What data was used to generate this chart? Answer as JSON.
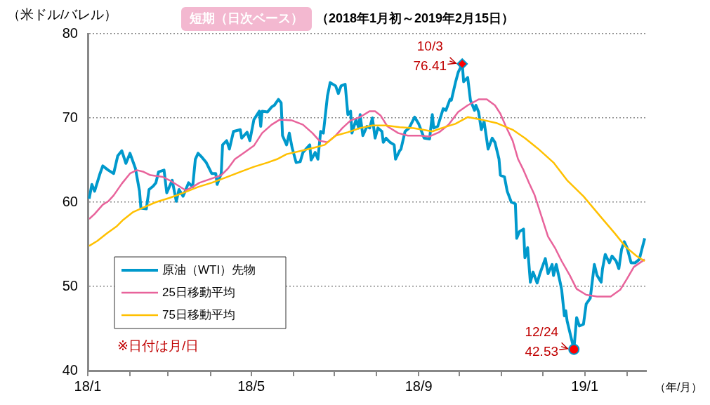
{
  "chart_data": {
    "type": "line",
    "title": "短期（日次ベース）",
    "subtitle": "（2018年1月初～2019年2月15日）",
    "ylabel": "（米ドル/バレル）",
    "xlabel": "（年/月）",
    "xlim": [
      "2018-01-01",
      "2019-02-15"
    ],
    "xticks": [
      {
        "value": "2018-01",
        "label": "18/1"
      },
      {
        "value": "2018-02",
        "label": null
      },
      {
        "value": "2018-03",
        "label": null
      },
      {
        "value": "2018-04",
        "label": null
      },
      {
        "value": "2018-05",
        "label": "18/5"
      },
      {
        "value": "2018-06",
        "label": null
      },
      {
        "value": "2018-07",
        "label": null
      },
      {
        "value": "2018-08",
        "label": null
      },
      {
        "value": "2018-09",
        "label": "18/9"
      },
      {
        "value": "2018-10",
        "label": null
      },
      {
        "value": "2018-11",
        "label": null
      },
      {
        "value": "2018-12",
        "label": null
      },
      {
        "value": "2019-01",
        "label": "19/1"
      },
      {
        "value": "2019-02",
        "label": null
      }
    ],
    "ylim": [
      40,
      80
    ],
    "yticks": [
      40,
      50,
      60,
      70,
      80
    ],
    "grid": "y",
    "legend": "bottom left",
    "annotations": [
      {
        "text": "10/3\n76.41",
        "x": "2018-10-03",
        "y": 76.41
      },
      {
        "text": "12/24\n42.53",
        "x": "2018-12-24",
        "y": 42.53
      },
      "※日付は月/日"
    ],
    "series": [
      {
        "name": "原油（WTI）先物",
        "color": "#0099cc",
        "x": [
          "2018-01-02",
          "2018-01-04",
          "2018-01-06",
          "2018-01-10",
          "2018-01-12",
          "2018-01-16",
          "2018-01-20",
          "2018-01-23",
          "2018-01-26",
          "2018-01-29",
          "2018-02-01",
          "2018-02-05",
          "2018-02-08",
          "2018-02-09",
          "2018-02-13",
          "2018-02-15",
          "2018-02-18",
          "2018-02-20",
          "2018-02-22",
          "2018-02-26",
          "2018-02-28",
          "2018-03-04",
          "2018-03-07",
          "2018-03-09",
          "2018-03-12",
          "2018-03-16",
          "2018-03-19",
          "2018-03-21",
          "2018-03-23",
          "2018-03-26",
          "2018-03-29",
          "2018-04-02",
          "2018-04-05",
          "2018-04-06",
          "2018-04-09",
          "2018-04-10",
          "2018-04-13",
          "2018-04-15",
          "2018-04-18",
          "2018-04-23",
          "2018-04-24",
          "2018-04-28",
          "2018-04-30",
          "2018-05-03",
          "2018-05-07",
          "2018-05-08",
          "2018-05-09",
          "2018-05-13",
          "2018-05-16",
          "2018-05-18",
          "2018-05-21",
          "2018-05-23",
          "2018-05-24",
          "2018-05-27",
          "2018-05-29",
          "2018-05-31",
          "2018-06-03",
          "2018-06-06",
          "2018-06-08",
          "2018-06-13",
          "2018-06-14",
          "2018-06-17",
          "2018-06-19",
          "2018-06-21",
          "2018-06-23",
          "2018-06-26",
          "2018-06-28",
          "2018-07-02",
          "2018-07-04",
          "2018-07-06",
          "2018-07-09",
          "2018-07-11",
          "2018-07-13",
          "2018-07-14",
          "2018-07-17",
          "2018-07-19",
          "2018-07-20",
          "2018-07-22",
          "2018-07-25",
          "2018-07-27",
          "2018-07-29",
          "2018-07-31",
          "2018-08-02",
          "2018-08-05",
          "2018-08-06",
          "2018-08-08",
          "2018-08-11",
          "2018-08-14",
          "2018-08-15",
          "2018-08-18",
          "2018-08-19",
          "2018-08-22",
          "2018-08-25",
          "2018-08-29",
          "2018-09-01",
          "2018-09-05",
          "2018-09-09",
          "2018-09-11",
          "2018-09-12",
          "2018-09-15",
          "2018-09-19",
          "2018-09-21",
          "2018-09-24",
          "2018-09-25",
          "2018-09-28",
          "2018-09-30",
          "2018-10-03",
          "2018-10-04",
          "2018-10-07",
          "2018-10-09",
          "2018-10-12",
          "2018-10-13",
          "2018-10-15",
          "2018-10-17",
          "2018-10-19",
          "2018-10-22",
          "2018-10-25",
          "2018-10-27",
          "2018-10-30",
          "2018-10-31",
          "2018-11-03",
          "2018-11-05",
          "2018-11-08",
          "2018-11-11",
          "2018-11-12",
          "2018-11-14",
          "2018-11-17",
          "2018-11-18",
          "2018-11-20",
          "2018-11-22",
          "2018-11-24",
          "2018-11-27",
          "2018-11-29",
          "2018-12-03",
          "2018-12-05",
          "2018-12-08",
          "2018-12-09",
          "2018-12-11",
          "2018-12-14",
          "2018-12-15",
          "2018-12-17",
          "2018-12-18",
          "2018-12-19",
          "2018-12-24",
          "2018-12-26",
          "2018-12-28",
          "2018-12-31",
          "2019-01-02",
          "2019-01-05",
          "2019-01-08",
          "2019-01-10",
          "2019-01-13",
          "2019-01-14",
          "2019-01-16",
          "2019-01-19",
          "2019-01-21",
          "2019-01-24",
          "2019-01-26",
          "2019-01-28",
          "2019-01-30",
          "2019-02-01",
          "2019-02-04",
          "2019-02-07",
          "2019-02-10",
          "2019-02-14"
        ],
        "values": [
          60.4,
          62.1,
          61.3,
          63.4,
          64.3,
          63.8,
          63.4,
          65.5,
          66.1,
          64.6,
          65.8,
          64.0,
          61.3,
          59.3,
          59.2,
          61.5,
          61.9,
          62.3,
          63.6,
          63.8,
          61.1,
          62.6,
          60.1,
          61.5,
          60.7,
          62.3,
          61.8,
          65.1,
          65.8,
          65.3,
          64.7,
          63.4,
          63.4,
          62.1,
          63.4,
          66.8,
          67.3,
          66.3,
          68.4,
          68.6,
          67.6,
          68.3,
          67.3,
          69.8,
          70.8,
          69.0,
          70.8,
          70.7,
          71.3,
          71.5,
          72.2,
          71.8,
          67.9,
          66.8,
          68.2,
          66.5,
          64.7,
          64.8,
          65.9,
          66.8,
          65.0,
          65.9,
          65.1,
          68.4,
          68.2,
          72.6,
          74.2,
          73.8,
          72.9,
          73.8,
          74.0,
          70.4,
          70.8,
          68.2,
          69.8,
          68.8,
          70.4,
          67.9,
          69.0,
          68.8,
          70.0,
          67.6,
          68.8,
          68.4,
          67.1,
          67.6,
          67.1,
          66.8,
          65.1,
          66.1,
          66.3,
          68.4,
          68.8,
          70.1,
          69.3,
          67.6,
          67.5,
          70.4,
          68.8,
          69.0,
          71.1,
          70.9,
          72.2,
          72.1,
          74.2,
          75.4,
          76.41,
          74.3,
          74.8,
          72.1,
          70.9,
          71.5,
          70.7,
          68.6,
          69.6,
          66.3,
          67.6,
          67.1,
          65.1,
          63.2,
          63.0,
          61.3,
          60.0,
          59.8,
          55.7,
          56.5,
          56.8,
          53.4,
          54.6,
          50.5,
          51.7,
          50.4,
          51.5,
          53.3,
          51.5,
          52.6,
          51.3,
          52.6,
          50.4,
          49.6,
          46.5,
          47.1,
          45.9,
          42.53,
          46.3,
          45.3,
          45.5,
          47.9,
          48.6,
          52.6,
          51.3,
          50.5,
          52.1,
          53.8,
          52.8,
          53.6,
          53.0,
          52.1,
          54.4,
          55.3,
          54.6,
          52.8,
          52.8,
          53.2,
          55.7
        ]
      },
      {
        "name": "25日移動平均",
        "color": "#e8639b",
        "x": [
          "2018-01-02",
          "2018-01-06",
          "2018-01-12",
          "2018-01-16",
          "2018-01-20",
          "2018-01-26",
          "2018-02-01",
          "2018-02-06",
          "2018-02-11",
          "2018-02-16",
          "2018-02-25",
          "2018-03-02",
          "2018-03-07",
          "2018-03-14",
          "2018-03-19",
          "2018-03-24",
          "2018-04-02",
          "2018-04-09",
          "2018-04-14",
          "2018-04-19",
          "2018-04-26",
          "2018-05-03",
          "2018-05-09",
          "2018-05-16",
          "2018-05-22",
          "2018-05-31",
          "2018-06-08",
          "2018-06-15",
          "2018-06-20",
          "2018-06-26",
          "2018-07-02",
          "2018-07-07",
          "2018-07-13",
          "2018-07-20",
          "2018-07-27",
          "2018-07-31",
          "2018-08-04",
          "2018-08-09",
          "2018-08-17",
          "2018-08-24",
          "2018-09-02",
          "2018-09-09",
          "2018-09-16",
          "2018-09-23",
          "2018-09-30",
          "2018-10-07",
          "2018-10-15",
          "2018-10-21",
          "2018-10-27",
          "2018-10-31",
          "2018-11-04",
          "2018-11-09",
          "2018-11-13",
          "2018-11-17",
          "2018-11-21",
          "2018-11-25",
          "2018-11-30",
          "2018-12-05",
          "2018-12-10",
          "2018-12-15",
          "2018-12-21",
          "2018-12-26",
          "2019-01-02",
          "2019-01-10",
          "2019-01-20",
          "2019-01-27",
          "2019-02-01",
          "2019-02-06",
          "2019-02-14"
        ],
        "values": [
          58.0,
          58.6,
          59.7,
          60.1,
          60.8,
          62.2,
          63.4,
          63.8,
          63.6,
          63.2,
          63.0,
          62.6,
          62.1,
          61.4,
          61.8,
          62.3,
          62.8,
          63.2,
          64.0,
          65.1,
          65.9,
          66.7,
          68.2,
          69.2,
          69.8,
          69.7,
          69.2,
          68.2,
          67.3,
          67.1,
          67.9,
          68.8,
          69.7,
          70.1,
          70.8,
          70.8,
          70.3,
          69.0,
          68.2,
          67.9,
          67.9,
          67.8,
          68.3,
          69.2,
          70.7,
          71.5,
          72.2,
          72.2,
          71.5,
          70.5,
          69.0,
          67.3,
          65.1,
          63.8,
          62.3,
          60.9,
          58.4,
          55.9,
          54.6,
          53.0,
          51.3,
          49.7,
          49.0,
          48.8,
          48.8,
          49.6,
          50.9,
          52.3,
          53.2
        ]
      },
      {
        "name": "75日移動平均",
        "color": "#ffc000",
        "x": [
          "2018-01-02",
          "2018-01-08",
          "2018-01-15",
          "2018-01-22",
          "2018-01-27",
          "2018-02-03",
          "2018-02-10",
          "2018-02-20",
          "2018-03-02",
          "2018-03-12",
          "2018-03-23",
          "2018-04-02",
          "2018-04-12",
          "2018-04-23",
          "2018-05-03",
          "2018-05-13",
          "2018-05-20",
          "2018-05-27",
          "2018-06-07",
          "2018-06-17",
          "2018-06-24",
          "2018-07-02",
          "2018-07-11",
          "2018-07-20",
          "2018-07-29",
          "2018-08-08",
          "2018-08-18",
          "2018-08-28",
          "2018-09-04",
          "2018-09-11",
          "2018-09-18",
          "2018-09-28",
          "2018-10-07",
          "2018-10-17",
          "2018-10-28",
          "2018-11-09",
          "2018-11-18",
          "2018-11-28",
          "2018-12-09",
          "2018-12-19",
          "2018-12-31",
          "2019-01-13",
          "2019-01-23",
          "2019-01-31",
          "2019-02-08",
          "2019-02-14"
        ],
        "values": [
          54.8,
          55.4,
          56.3,
          57.1,
          57.9,
          58.8,
          59.3,
          60.0,
          60.5,
          61.1,
          61.8,
          62.3,
          62.9,
          63.6,
          64.2,
          64.7,
          65.1,
          65.7,
          66.1,
          66.5,
          66.8,
          67.9,
          68.3,
          68.8,
          69.1,
          69.1,
          68.9,
          68.8,
          68.6,
          68.4,
          68.8,
          69.3,
          70.1,
          69.8,
          69.4,
          68.6,
          67.6,
          66.3,
          64.7,
          62.6,
          60.7,
          58.2,
          56.3,
          54.7,
          53.6,
          53.0
        ]
      },
      {
        "type": "scatter",
        "marker": "diamond",
        "color": "#ff0000",
        "x": [
          "2018-10-03"
        ],
        "values": [
          76.41
        ]
      },
      {
        "type": "scatter",
        "marker": "circle",
        "color": "#ff0000",
        "x": [
          "2018-12-24"
        ],
        "values": [
          42.53
        ]
      }
    ]
  }
}
